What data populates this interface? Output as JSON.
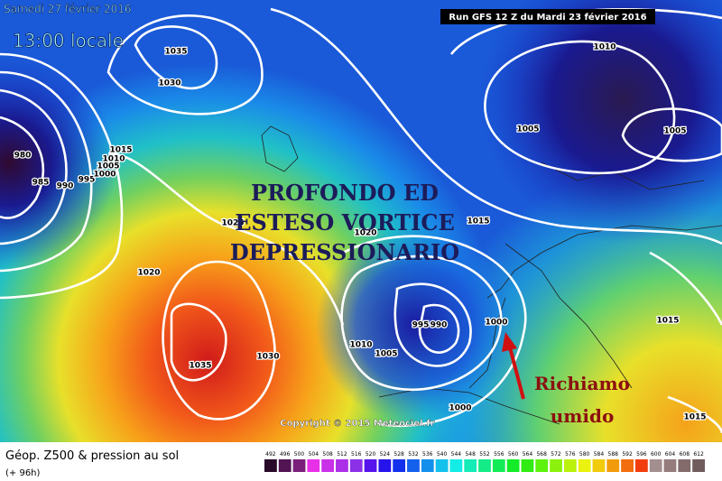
{
  "header": {
    "date": "Samedi 27 février 2016",
    "time": "13:00 locale",
    "run": "Run GFS 12 Z du Mardi 23 février 2016"
  },
  "annotation": {
    "lines": [
      "PROFONDO ED",
      "ESTESO VORTICE",
      "DEPRESSIONARIO"
    ],
    "arrow_label": [
      "Richiamo",
      "umido"
    ]
  },
  "isobar_labels": [
    "1035",
    "1030",
    "980",
    "985",
    "990",
    "995",
    "1000",
    "1005",
    "1010",
    "1015",
    "1025",
    "1020",
    "1035",
    "1030",
    "1020",
    "1010",
    "1005",
    "995",
    "990",
    "1000",
    "1000",
    "1015",
    "1010",
    "1005",
    "1005",
    "1015",
    "1015"
  ],
  "copyright": "Copyright © 2015 Meteociel.fr",
  "footer": {
    "title": "Géop. Z500 & pression au sol",
    "lead": "(+ 96h)"
  },
  "scale": [
    "492",
    "496",
    "500",
    "504",
    "508",
    "512",
    "516",
    "520",
    "524",
    "528",
    "532",
    "536",
    "540",
    "544",
    "548",
    "552",
    "556",
    "560",
    "564",
    "568",
    "572",
    "576",
    "580",
    "584",
    "588",
    "592",
    "596",
    "600",
    "604",
    "608",
    "612"
  ]
}
